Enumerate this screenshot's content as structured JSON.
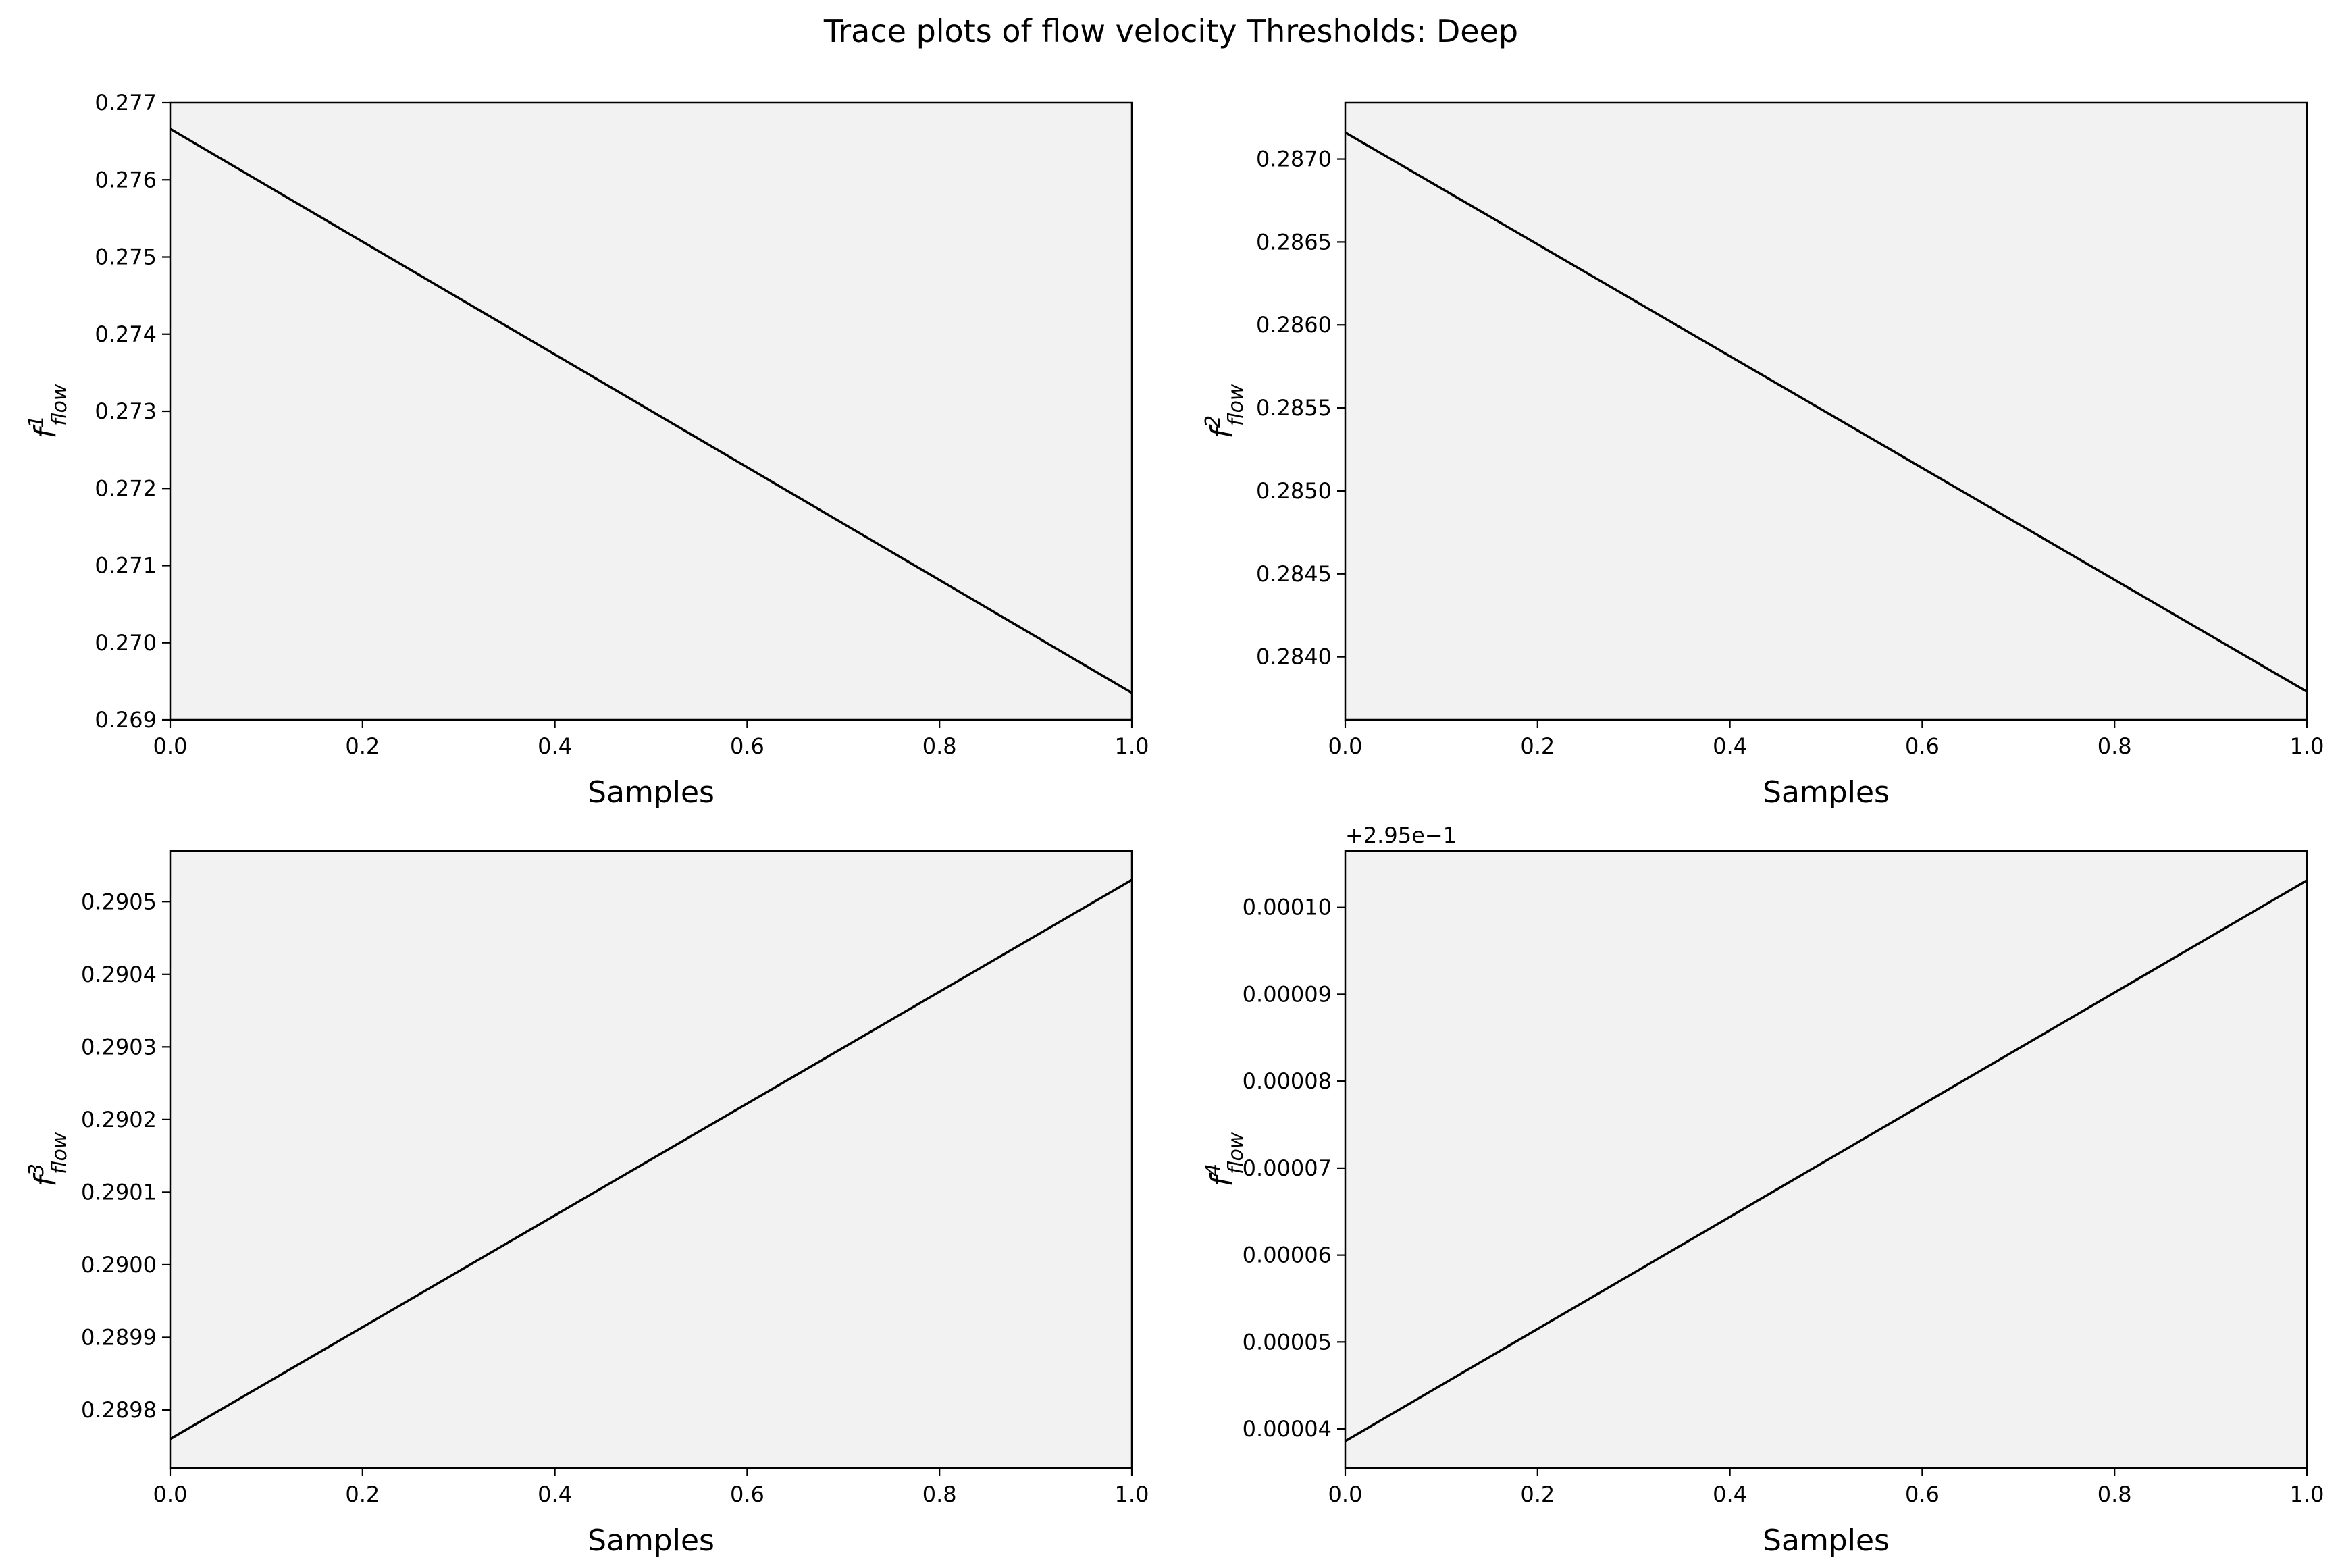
{
  "figure": {
    "title": "Trace plots of flow velocity Thresholds: Deep"
  },
  "chart_data": [
    {
      "type": "line",
      "title": "",
      "xlabel": "Samples",
      "ylabel_base": "f",
      "ylabel_sup": "1",
      "ylabel_sub": "flow",
      "offset_text": "",
      "xlim": [
        0,
        1
      ],
      "ylim": [
        0.269,
        0.277
      ],
      "xticks": [
        0,
        0.2,
        0.4,
        0.6,
        0.8,
        1.0
      ],
      "xtick_labels": [
        "0.0",
        "0.2",
        "0.4",
        "0.6",
        "0.8",
        "1.0"
      ],
      "yticks": [
        0.269,
        0.27,
        0.271,
        0.272,
        0.273,
        0.274,
        0.275,
        0.276,
        0.277
      ],
      "ytick_labels": [
        "0.269",
        "0.270",
        "0.271",
        "0.272",
        "0.273",
        "0.274",
        "0.275",
        "0.276",
        "0.277"
      ],
      "grid": false,
      "series": [
        {
          "x": [
            0,
            1
          ],
          "y": [
            0.27666,
            0.26935
          ],
          "color": "#000000"
        }
      ]
    },
    {
      "type": "line",
      "title": "",
      "xlabel": "Samples",
      "ylabel_base": "f",
      "ylabel_sup": "2",
      "ylabel_sub": "flow",
      "offset_text": "",
      "xlim": [
        0,
        1
      ],
      "ylim": [
        0.28362,
        0.28734
      ],
      "xticks": [
        0,
        0.2,
        0.4,
        0.6,
        0.8,
        1.0
      ],
      "xtick_labels": [
        "0.0",
        "0.2",
        "0.4",
        "0.6",
        "0.8",
        "1.0"
      ],
      "yticks": [
        0.284,
        0.2845,
        0.285,
        0.2855,
        0.286,
        0.2865,
        0.287
      ],
      "ytick_labels": [
        "0.2840",
        "0.2845",
        "0.2850",
        "0.2855",
        "0.2860",
        "0.2865",
        "0.2870"
      ],
      "grid": false,
      "series": [
        {
          "x": [
            0,
            1
          ],
          "y": [
            0.28716,
            0.28379
          ],
          "color": "#000000"
        }
      ]
    },
    {
      "type": "line",
      "title": "",
      "xlabel": "Samples",
      "ylabel_base": "f",
      "ylabel_sup": "3",
      "ylabel_sub": "flow",
      "offset_text": "",
      "xlim": [
        0,
        1
      ],
      "ylim": [
        0.28972,
        0.29057
      ],
      "xticks": [
        0,
        0.2,
        0.4,
        0.6,
        0.8,
        1.0
      ],
      "xtick_labels": [
        "0.0",
        "0.2",
        "0.4",
        "0.6",
        "0.8",
        "1.0"
      ],
      "yticks": [
        0.2898,
        0.2899,
        0.29,
        0.2901,
        0.2902,
        0.2903,
        0.2904,
        0.2905
      ],
      "ytick_labels": [
        "0.2898",
        "0.2899",
        "0.2900",
        "0.2901",
        "0.2902",
        "0.2903",
        "0.2904",
        "0.2905"
      ],
      "grid": false,
      "series": [
        {
          "x": [
            0,
            1
          ],
          "y": [
            0.28976,
            0.29053
          ],
          "color": "#000000"
        }
      ]
    },
    {
      "type": "line",
      "title": "",
      "xlabel": "Samples",
      "ylabel_base": "f",
      "ylabel_sup": "4",
      "ylabel_sub": "flow",
      "offset_text": "+2.95e−1",
      "xlim": [
        0,
        1
      ],
      "ylim": [
        3.55e-05,
        0.0001065
      ],
      "xticks": [
        0,
        0.2,
        0.4,
        0.6,
        0.8,
        1.0
      ],
      "xtick_labels": [
        "0.0",
        "0.2",
        "0.4",
        "0.6",
        "0.8",
        "1.0"
      ],
      "yticks": [
        4e-05,
        5e-05,
        6e-05,
        7e-05,
        8e-05,
        9e-05,
        0.0001
      ],
      "ytick_labels": [
        "0.00004",
        "0.00005",
        "0.00006",
        "0.00007",
        "0.00008",
        "0.00009",
        "0.00010"
      ],
      "grid": false,
      "series": [
        {
          "x": [
            0,
            1
          ],
          "y": [
            3.86e-05,
            0.0001031
          ],
          "color": "#000000"
        }
      ]
    }
  ]
}
